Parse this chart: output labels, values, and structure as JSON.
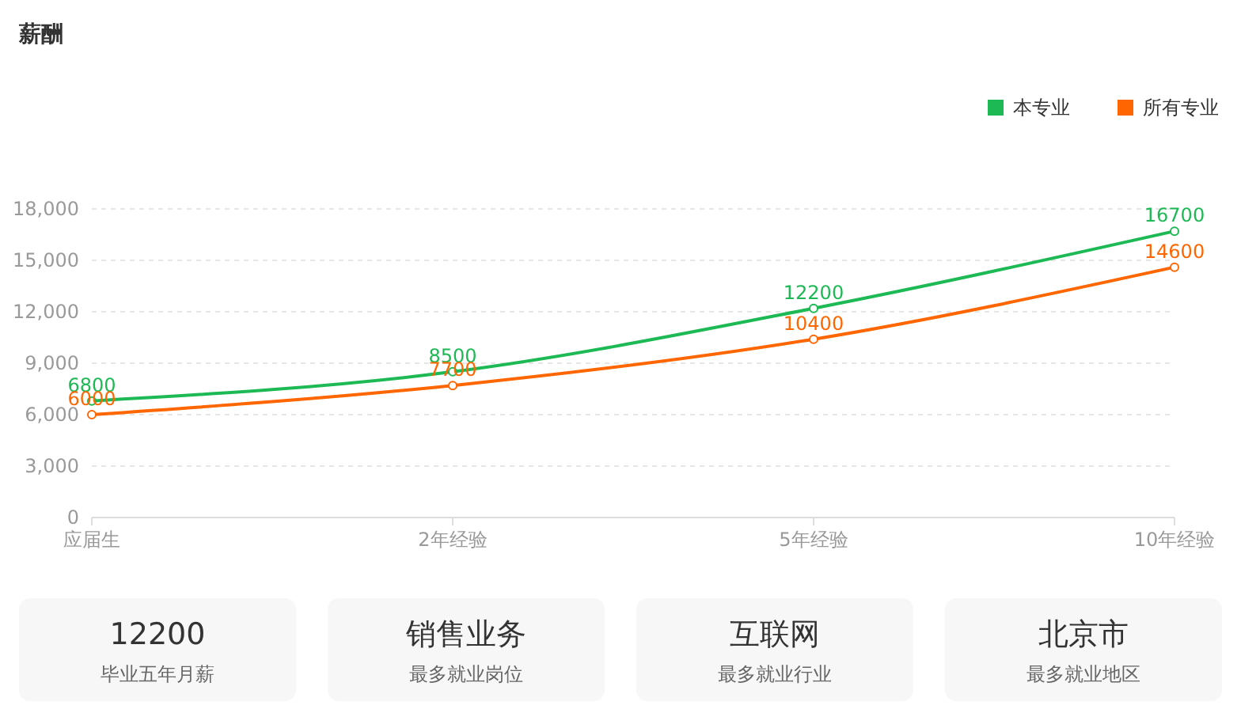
{
  "chart_data": [
    {
      "type": "line",
      "title": "薪酬",
      "categories": [
        "应届生",
        "2年经验",
        "5年经验",
        "10年经验"
      ],
      "series": [
        {
          "name": "本专业",
          "color": "#1db954",
          "values": [
            6800,
            8500,
            12200,
            16700
          ]
        },
        {
          "name": "所有专业",
          "color": "#ff6600",
          "values": [
            6000,
            7700,
            10400,
            14600
          ]
        }
      ],
      "ylim": [
        0,
        18000
      ],
      "yticks": [
        0,
        {
          "value": 3000,
          "label": "3,000"
        },
        {
          "value": 6000,
          "label": "6,000"
        },
        {
          "value": 9000,
          "label": "9,000"
        },
        {
          "value": 12000,
          "label": "12,000"
        },
        {
          "value": 15000,
          "label": "15,000"
        },
        {
          "value": 18000,
          "label": "18,000"
        }
      ],
      "grid": "y",
      "legend": "top right",
      "marker": "circle",
      "line_style": "solid",
      "data_labels": true
    },
    {
      "type": "other",
      "annotations": [
        "12200",
        "毕业五年月薪",
        "销售业务",
        "最多就业岗位",
        "互联网",
        "最多就业行业",
        "北京市",
        "最多就业地区"
      ]
    }
  ]
}
